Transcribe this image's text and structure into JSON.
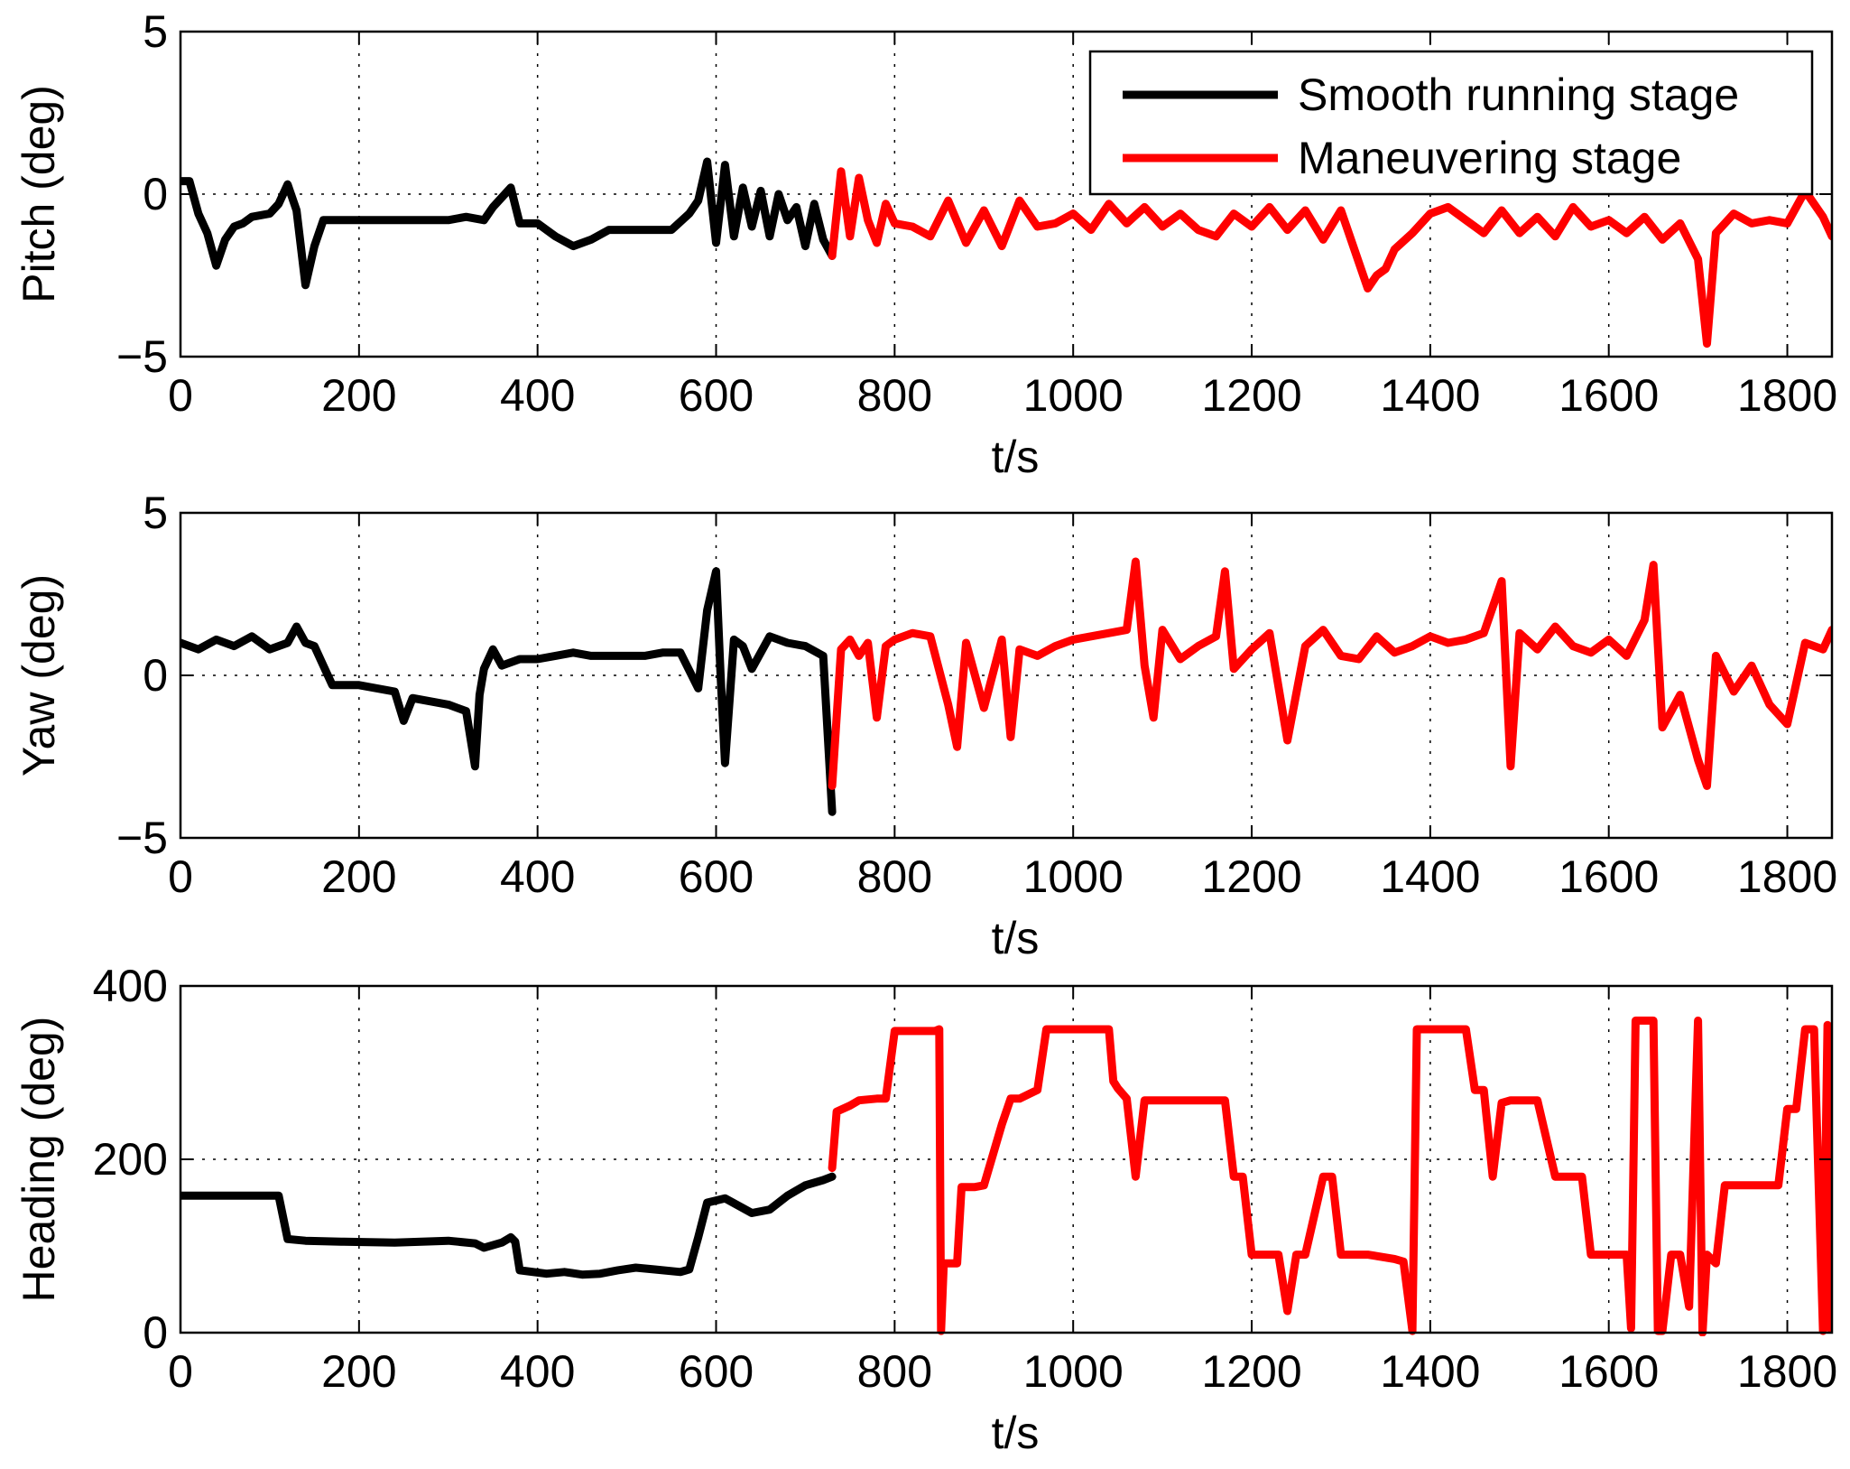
{
  "chart_data": [
    {
      "type": "line",
      "ylabel": "Pitch (deg)",
      "xlabel": "t/s",
      "xlim": [
        0,
        1850
      ],
      "ylim": [
        -5,
        5
      ],
      "xticks": [
        "0",
        "200",
        "400",
        "600",
        "800",
        "1000",
        "1200",
        "1400",
        "1600",
        "1800"
      ],
      "yticks": [
        "5",
        "0",
        "−5"
      ],
      "ytick_values": [
        5,
        0,
        -5
      ],
      "grid": true,
      "legend": {
        "location": "top-right",
        "entries": [
          {
            "label": "Smooth running stage",
            "color": "#000000"
          },
          {
            "label": "Maneuvering stage",
            "color": "#ff0000"
          }
        ]
      },
      "series": [
        {
          "name": "Smooth running stage",
          "color": "#000000",
          "x": [
            0,
            10,
            20,
            30,
            40,
            50,
            60,
            70,
            80,
            100,
            110,
            120,
            130,
            140,
            150,
            160,
            170,
            200,
            250,
            300,
            320,
            340,
            350,
            370,
            380,
            400,
            420,
            440,
            460,
            480,
            500,
            520,
            550,
            570,
            580,
            590,
            600,
            610,
            620,
            630,
            640,
            650,
            660,
            670,
            680,
            690,
            700,
            710,
            720,
            730
          ],
          "y": [
            0.4,
            0.4,
            -0.6,
            -1.2,
            -2.2,
            -1.4,
            -1.0,
            -0.9,
            -0.7,
            -0.6,
            -0.3,
            0.3,
            -0.5,
            -2.8,
            -1.6,
            -0.8,
            -0.8,
            -0.8,
            -0.8,
            -0.8,
            -0.7,
            -0.8,
            -0.4,
            0.2,
            -0.9,
            -0.9,
            -1.3,
            -1.6,
            -1.4,
            -1.1,
            -1.1,
            -1.1,
            -1.1,
            -0.6,
            -0.2,
            1.0,
            -1.5,
            0.9,
            -1.3,
            0.2,
            -1.0,
            0.1,
            -1.3,
            0.0,
            -0.8,
            -0.4,
            -1.6,
            -0.3,
            -1.4,
            -1.9
          ]
        },
        {
          "name": "Maneuvering stage",
          "color": "#ff0000",
          "x": [
            730,
            740,
            750,
            760,
            770,
            780,
            790,
            800,
            820,
            840,
            860,
            880,
            900,
            920,
            940,
            960,
            980,
            1000,
            1020,
            1040,
            1060,
            1080,
            1100,
            1120,
            1140,
            1160,
            1180,
            1200,
            1220,
            1240,
            1260,
            1280,
            1300,
            1320,
            1330,
            1340,
            1350,
            1360,
            1380,
            1400,
            1420,
            1440,
            1460,
            1480,
            1500,
            1520,
            1540,
            1560,
            1580,
            1600,
            1620,
            1640,
            1660,
            1680,
            1700,
            1710,
            1720,
            1740,
            1760,
            1780,
            1800,
            1820,
            1840,
            1850
          ],
          "y": [
            -1.9,
            0.7,
            -1.3,
            0.5,
            -0.8,
            -1.5,
            -0.3,
            -0.9,
            -1.0,
            -1.3,
            -0.2,
            -1.5,
            -0.5,
            -1.6,
            -0.2,
            -1.0,
            -0.9,
            -0.6,
            -1.1,
            -0.3,
            -0.9,
            -0.4,
            -1.0,
            -0.6,
            -1.1,
            -1.3,
            -0.6,
            -1.0,
            -0.4,
            -1.1,
            -0.5,
            -1.4,
            -0.5,
            -2.1,
            -2.9,
            -2.5,
            -2.3,
            -1.7,
            -1.2,
            -0.6,
            -0.4,
            -0.8,
            -1.2,
            -0.5,
            -1.2,
            -0.7,
            -1.3,
            -0.4,
            -1.0,
            -0.8,
            -1.2,
            -0.7,
            -1.4,
            -0.9,
            -2.0,
            -4.6,
            -1.2,
            -0.6,
            -0.9,
            -0.8,
            -0.9,
            0.1,
            -0.7,
            -1.3
          ]
        }
      ]
    },
    {
      "type": "line",
      "ylabel": "Yaw (deg)",
      "xlabel": "t/s",
      "xlim": [
        0,
        1850
      ],
      "ylim": [
        -5,
        5
      ],
      "xticks": [
        "0",
        "200",
        "400",
        "600",
        "800",
        "1000",
        "1200",
        "1400",
        "1600",
        "1800"
      ],
      "yticks": [
        "5",
        "0",
        "−5"
      ],
      "ytick_values": [
        5,
        0,
        -5
      ],
      "grid": true,
      "series": [
        {
          "name": "Smooth running stage",
          "color": "#000000",
          "x": [
            0,
            20,
            40,
            60,
            80,
            100,
            120,
            130,
            140,
            150,
            160,
            170,
            200,
            240,
            250,
            260,
            300,
            320,
            330,
            335,
            340,
            350,
            360,
            380,
            400,
            420,
            440,
            460,
            480,
            500,
            520,
            540,
            560,
            580,
            590,
            600,
            605,
            610,
            620,
            630,
            640,
            660,
            680,
            700,
            720,
            730
          ],
          "y": [
            1.0,
            0.8,
            1.1,
            0.9,
            1.2,
            0.8,
            1.0,
            1.5,
            1.0,
            0.9,
            0.3,
            -0.3,
            -0.3,
            -0.5,
            -1.4,
            -0.7,
            -0.9,
            -1.1,
            -2.8,
            -0.6,
            0.2,
            0.8,
            0.3,
            0.5,
            0.5,
            0.6,
            0.7,
            0.6,
            0.6,
            0.6,
            0.6,
            0.7,
            0.7,
            -0.4,
            2.0,
            3.2,
            0.0,
            -2.7,
            1.1,
            0.9,
            0.2,
            1.2,
            1.0,
            0.9,
            0.6,
            -4.2
          ]
        },
        {
          "name": "Maneuvering stage",
          "color": "#ff0000",
          "x": [
            730,
            740,
            750,
            760,
            770,
            780,
            790,
            800,
            820,
            840,
            860,
            870,
            880,
            900,
            920,
            930,
            940,
            960,
            980,
            1000,
            1020,
            1040,
            1060,
            1070,
            1080,
            1090,
            1100,
            1120,
            1140,
            1160,
            1170,
            1180,
            1200,
            1220,
            1240,
            1260,
            1280,
            1300,
            1320,
            1340,
            1360,
            1380,
            1400,
            1420,
            1440,
            1460,
            1480,
            1490,
            1500,
            1520,
            1540,
            1560,
            1580,
            1600,
            1620,
            1640,
            1650,
            1660,
            1680,
            1700,
            1710,
            1720,
            1740,
            1760,
            1780,
            1800,
            1820,
            1840,
            1850
          ],
          "y": [
            -3.4,
            0.8,
            1.1,
            0.6,
            1.0,
            -1.3,
            0.9,
            1.1,
            1.3,
            1.2,
            -0.9,
            -2.2,
            1.0,
            -1.0,
            1.1,
            -1.9,
            0.8,
            0.6,
            0.9,
            1.1,
            1.2,
            1.3,
            1.4,
            3.5,
            0.3,
            -1.3,
            1.4,
            0.5,
            0.9,
            1.2,
            3.2,
            0.2,
            0.8,
            1.3,
            -2.0,
            0.9,
            1.4,
            0.6,
            0.5,
            1.2,
            0.7,
            0.9,
            1.2,
            1.0,
            1.1,
            1.3,
            2.9,
            -2.8,
            1.3,
            0.8,
            1.5,
            0.9,
            0.7,
            1.1,
            0.6,
            1.7,
            3.4,
            -1.6,
            -0.6,
            -2.6,
            -3.4,
            0.6,
            -0.5,
            0.3,
            -0.9,
            -1.5,
            1.0,
            0.8,
            1.4
          ]
        }
      ]
    },
    {
      "type": "line",
      "ylabel": "Heading (deg)",
      "xlabel": "t/s",
      "xlim": [
        0,
        1850
      ],
      "ylim": [
        0,
        400
      ],
      "xticks": [
        "0",
        "200",
        "400",
        "600",
        "800",
        "1000",
        "1200",
        "1400",
        "1600",
        "1800"
      ],
      "yticks": [
        "400",
        "200",
        "0"
      ],
      "ytick_values": [
        400,
        200,
        0
      ],
      "grid": true,
      "series": [
        {
          "name": "Smooth running stage",
          "color": "#000000",
          "x": [
            0,
            110,
            120,
            140,
            180,
            240,
            300,
            330,
            340,
            360,
            370,
            375,
            380,
            410,
            430,
            450,
            470,
            490,
            510,
            530,
            560,
            570,
            580,
            590,
            610,
            640,
            660,
            680,
            700,
            720,
            730
          ],
          "y": [
            158,
            158,
            108,
            106,
            105,
            104,
            106,
            103,
            98,
            104,
            110,
            105,
            72,
            68,
            70,
            67,
            68,
            72,
            75,
            73,
            70,
            73,
            110,
            150,
            155,
            138,
            142,
            158,
            170,
            176,
            180
          ]
        },
        {
          "name": "Maneuvering stage",
          "color": "#ff0000",
          "x": [
            730,
            735,
            750,
            760,
            780,
            790,
            800,
            820,
            830,
            845,
            850,
            852,
            855,
            860,
            870,
            875,
            880,
            890,
            900,
            920,
            930,
            940,
            960,
            970,
            980,
            1000,
            1020,
            1040,
            1045,
            1050,
            1060,
            1070,
            1080,
            1090,
            1100,
            1120,
            1150,
            1170,
            1180,
            1190,
            1200,
            1230,
            1240,
            1250,
            1260,
            1280,
            1290,
            1300,
            1310,
            1330,
            1360,
            1370,
            1380,
            1385,
            1390,
            1400,
            1440,
            1450,
            1460,
            1470,
            1480,
            1490,
            1500,
            1520,
            1540,
            1570,
            1580,
            1590,
            1600,
            1610,
            1620,
            1625,
            1630,
            1650,
            1655,
            1660,
            1670,
            1680,
            1690,
            1700,
            1705,
            1710,
            1720,
            1730,
            1760,
            1790,
            1800,
            1810,
            1820,
            1830,
            1840,
            1845,
            1848,
            1850
          ],
          "y": [
            190,
            255,
            262,
            268,
            270,
            270,
            348,
            348,
            348,
            348,
            350,
            2,
            80,
            80,
            80,
            168,
            168,
            168,
            170,
            240,
            270,
            270,
            280,
            350,
            350,
            350,
            350,
            350,
            290,
            282,
            270,
            180,
            268,
            268,
            268,
            268,
            268,
            268,
            180,
            180,
            90,
            90,
            25,
            90,
            90,
            180,
            180,
            90,
            90,
            90,
            85,
            82,
            2,
            350,
            350,
            350,
            350,
            280,
            280,
            180,
            265,
            268,
            268,
            268,
            180,
            180,
            90,
            90,
            90,
            90,
            90,
            5,
            360,
            360,
            2,
            2,
            90,
            90,
            30,
            360,
            0,
            90,
            80,
            170,
            170,
            170,
            258,
            258,
            350,
            350,
            2,
            355,
            5,
            80
          ]
        }
      ]
    }
  ]
}
